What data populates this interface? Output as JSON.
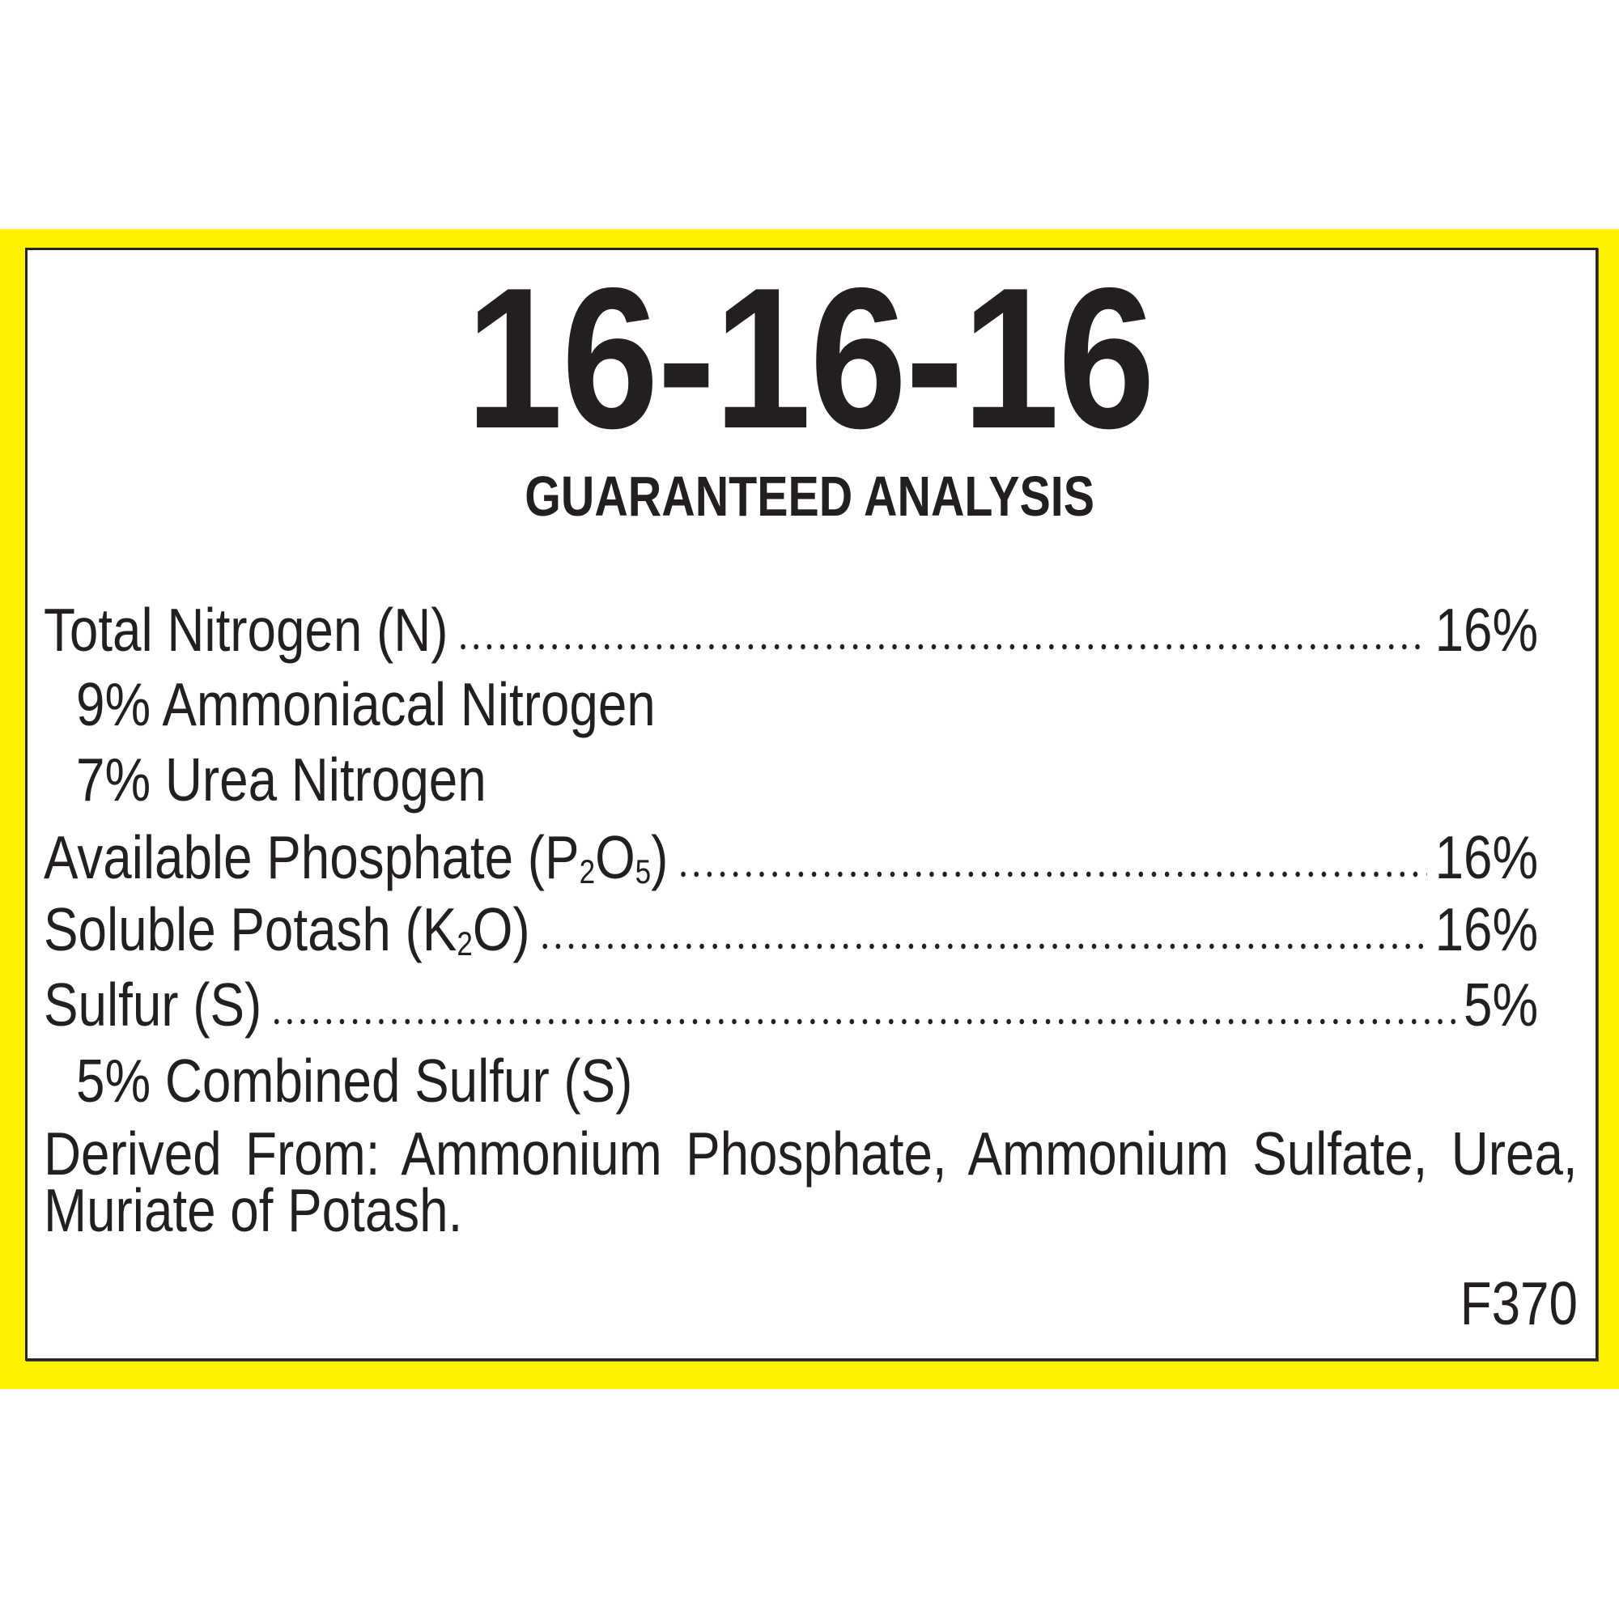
{
  "label": {
    "background_color": "#fff200",
    "text_color": "#231f20",
    "grade": "16-16-16",
    "heading": "GUARANTEED ANALYSIS",
    "rows": [
      {
        "label": "Total Nitrogen (N)",
        "value": "16%"
      },
      {
        "label": "9% Ammoniacal Nitrogen"
      },
      {
        "label": "7% Urea Nitrogen"
      },
      {
        "label_parts": [
          "Available Phosphate (P",
          "2",
          "O",
          "5",
          ")"
        ],
        "value": "16%"
      },
      {
        "label_parts": [
          "Soluble Potash (K",
          "2",
          "O)"
        ],
        "value": "16%"
      },
      {
        "label": "Sulfur (S)",
        "value": "5%"
      },
      {
        "label": "5% Combined Sulfur (S)"
      }
    ],
    "derived_from": "Derived From: Ammonium Phosphate, Ammonium Sulfate, Urea, Muriate of Potash.",
    "code": "F370"
  }
}
